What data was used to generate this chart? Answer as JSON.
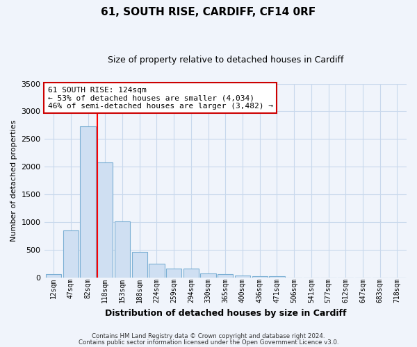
{
  "title": "61, SOUTH RISE, CARDIFF, CF14 0RF",
  "subtitle": "Size of property relative to detached houses in Cardiff",
  "xlabel": "Distribution of detached houses by size in Cardiff",
  "ylabel": "Number of detached properties",
  "categories": [
    "12sqm",
    "47sqm",
    "82sqm",
    "118sqm",
    "153sqm",
    "188sqm",
    "224sqm",
    "259sqm",
    "294sqm",
    "330sqm",
    "365sqm",
    "400sqm",
    "436sqm",
    "471sqm",
    "506sqm",
    "541sqm",
    "577sqm",
    "612sqm",
    "647sqm",
    "683sqm",
    "718sqm"
  ],
  "values": [
    55,
    850,
    2730,
    2075,
    1010,
    455,
    250,
    155,
    155,
    65,
    55,
    35,
    25,
    20,
    0,
    0,
    0,
    0,
    0,
    0,
    0
  ],
  "bar_color": "#cfdff2",
  "bar_edge_color": "#7bafd4",
  "background_color": "#f0f4fb",
  "plot_bg_color": "#f0f4fb",
  "grid_color": "#c8d8ec",
  "vline_color": "red",
  "vline_x_idx": 3,
  "annotation_title": "61 SOUTH RISE: 124sqm",
  "annotation_line1": "← 53% of detached houses are smaller (4,034)",
  "annotation_line2": "46% of semi-detached houses are larger (3,482) →",
  "annotation_box_facecolor": "#ffffff",
  "annotation_box_edgecolor": "#cc0000",
  "ylim": [
    0,
    3500
  ],
  "yticks": [
    0,
    500,
    1000,
    1500,
    2000,
    2500,
    3000,
    3500
  ],
  "footer1": "Contains HM Land Registry data © Crown copyright and database right 2024.",
  "footer2": "Contains public sector information licensed under the Open Government Licence v3.0."
}
